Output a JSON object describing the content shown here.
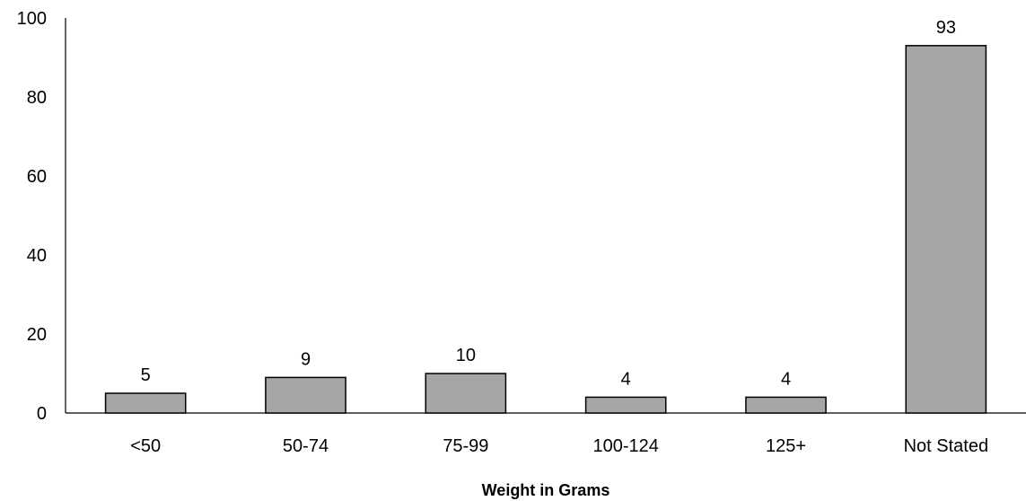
{
  "chart_data": {
    "type": "bar",
    "title": "",
    "xlabel": "Weight in Grams",
    "ylabel": "",
    "ylim": [
      0,
      100
    ],
    "yticks": [
      "0",
      "20",
      "40",
      "60",
      "80",
      "100"
    ],
    "grid": false,
    "legend": "none",
    "categories": [
      "<50",
      "50-74",
      "75-99",
      "100-124",
      "125+",
      "Not Stated"
    ],
    "values": [
      5,
      9,
      10,
      4,
      4,
      93
    ],
    "data_labels": [
      "5",
      "9",
      "10",
      "4",
      "4",
      "93"
    ],
    "colors": {
      "bar_fill": "#a6a6a6",
      "bar_stroke": "#000000",
      "axis": "#000000",
      "text": "#000000"
    }
  }
}
